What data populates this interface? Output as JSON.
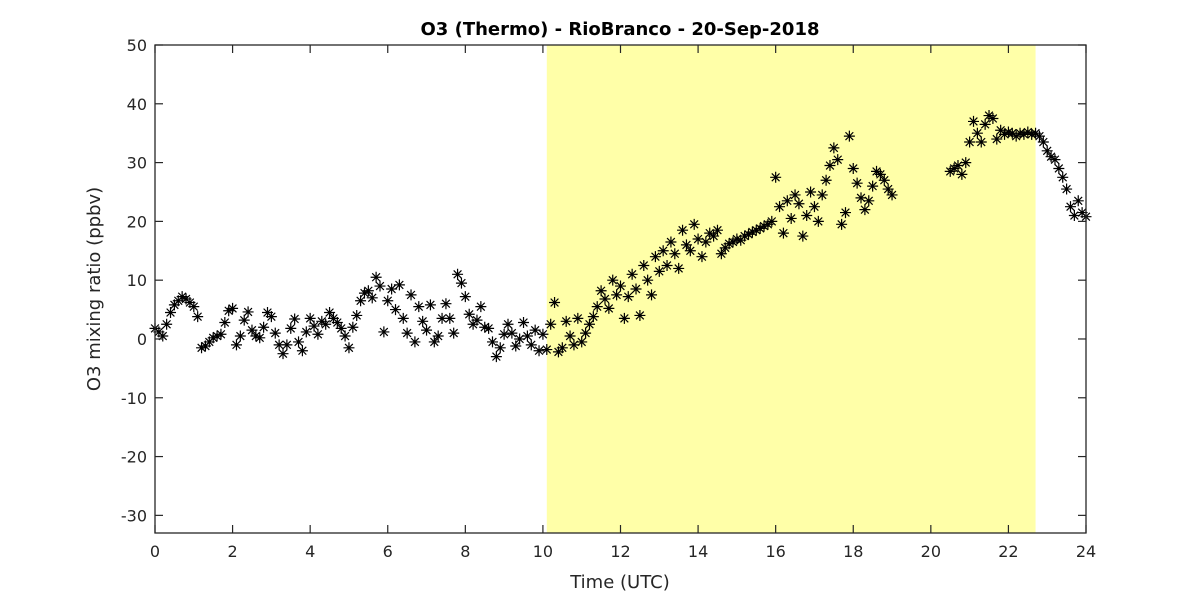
{
  "chart_data": {
    "type": "scatter",
    "title": "O3 (Thermo) - RioBranco - 20-Sep-2018",
    "xlabel": "Time (UTC)",
    "ylabel": "O3 mixing ratio (ppbv)",
    "xlim": [
      0,
      24
    ],
    "ylim": [
      -33,
      50
    ],
    "xticks": [
      "0",
      "2",
      "4",
      "6",
      "8",
      "10",
      "12",
      "14",
      "16",
      "18",
      "20",
      "22",
      "24"
    ],
    "yticks": [
      "-30",
      "-20",
      "-10",
      "0",
      "10",
      "20",
      "30",
      "40",
      "50"
    ],
    "grid": false,
    "marker": "asterisk",
    "marker_color": "#000000",
    "highlight": {
      "x_start": 10.1,
      "x_end": 22.7,
      "color": "#ffffa8"
    },
    "series": [
      {
        "points": [
          [
            0.0,
            1.8
          ],
          [
            0.1,
            1.2
          ],
          [
            0.2,
            0.5
          ],
          [
            0.3,
            2.5
          ],
          [
            0.4,
            4.5
          ],
          [
            0.5,
            5.8
          ],
          [
            0.6,
            6.5
          ],
          [
            0.7,
            7.2
          ],
          [
            0.8,
            6.8
          ],
          [
            0.9,
            6.2
          ],
          [
            1.0,
            5.5
          ],
          [
            1.1,
            3.8
          ],
          [
            1.2,
            -1.5
          ],
          [
            1.3,
            -1.2
          ],
          [
            1.4,
            -0.5
          ],
          [
            1.5,
            0.2
          ],
          [
            1.6,
            0.5
          ],
          [
            1.7,
            0.8
          ],
          [
            1.8,
            2.8
          ],
          [
            1.9,
            4.8
          ],
          [
            2.0,
            5.2
          ],
          [
            2.1,
            -1.0
          ],
          [
            2.2,
            0.5
          ],
          [
            2.3,
            3.2
          ],
          [
            2.4,
            4.6
          ],
          [
            2.5,
            1.5
          ],
          [
            2.6,
            0.5
          ],
          [
            2.7,
            0.2
          ],
          [
            2.8,
            2.0
          ],
          [
            2.9,
            4.5
          ],
          [
            3.0,
            3.8
          ],
          [
            3.1,
            1.0
          ],
          [
            3.2,
            -1.0
          ],
          [
            3.3,
            -2.5
          ],
          [
            3.4,
            -1.0
          ],
          [
            3.5,
            1.8
          ],
          [
            3.6,
            3.4
          ],
          [
            3.7,
            -0.5
          ],
          [
            3.8,
            -2.0
          ],
          [
            3.9,
            1.2
          ],
          [
            4.0,
            3.5
          ],
          [
            4.1,
            2.2
          ],
          [
            4.2,
            0.8
          ],
          [
            4.3,
            3.0
          ],
          [
            4.4,
            2.5
          ],
          [
            4.5,
            4.5
          ],
          [
            4.6,
            3.5
          ],
          [
            4.7,
            2.8
          ],
          [
            4.8,
            1.8
          ],
          [
            4.9,
            0.5
          ],
          [
            5.0,
            -1.5
          ],
          [
            5.1,
            2.0
          ],
          [
            5.2,
            4.0
          ],
          [
            5.3,
            6.5
          ],
          [
            5.4,
            7.8
          ],
          [
            5.5,
            8.2
          ],
          [
            5.6,
            7.0
          ],
          [
            5.7,
            10.5
          ],
          [
            5.8,
            9.0
          ],
          [
            5.9,
            1.2
          ],
          [
            6.0,
            6.5
          ],
          [
            6.1,
            8.5
          ],
          [
            6.2,
            5.0
          ],
          [
            6.3,
            9.2
          ],
          [
            6.4,
            3.5
          ],
          [
            6.5,
            1.0
          ],
          [
            6.6,
            7.5
          ],
          [
            6.7,
            -0.5
          ],
          [
            6.8,
            5.5
          ],
          [
            6.9,
            3.0
          ],
          [
            7.0,
            1.5
          ],
          [
            7.1,
            5.8
          ],
          [
            7.2,
            -0.5
          ],
          [
            7.3,
            0.5
          ],
          [
            7.4,
            3.5
          ],
          [
            7.5,
            6.0
          ],
          [
            7.6,
            3.5
          ],
          [
            7.7,
            1.0
          ],
          [
            7.8,
            11.0
          ],
          [
            7.9,
            9.5
          ],
          [
            8.0,
            7.2
          ],
          [
            8.1,
            4.2
          ],
          [
            8.2,
            2.5
          ],
          [
            8.3,
            3.2
          ],
          [
            8.4,
            5.5
          ],
          [
            8.5,
            2.0
          ],
          [
            8.6,
            1.8
          ],
          [
            8.7,
            -0.5
          ],
          [
            8.8,
            -3.0
          ],
          [
            8.9,
            -1.5
          ],
          [
            9.0,
            0.8
          ],
          [
            9.1,
            2.5
          ],
          [
            9.2,
            1.0
          ],
          [
            9.3,
            -1.2
          ],
          [
            9.4,
            0.0
          ],
          [
            9.5,
            2.8
          ],
          [
            9.6,
            0.5
          ],
          [
            9.7,
            -1.0
          ],
          [
            9.8,
            1.5
          ],
          [
            9.9,
            -2.0
          ],
          [
            10.0,
            0.8
          ],
          [
            10.1,
            -1.8
          ],
          [
            10.2,
            2.5
          ],
          [
            10.3,
            6.2
          ],
          [
            10.4,
            -2.2
          ],
          [
            10.5,
            -1.5
          ],
          [
            10.6,
            3.0
          ],
          [
            10.7,
            0.5
          ],
          [
            10.8,
            -1.0
          ],
          [
            10.9,
            3.5
          ],
          [
            11.0,
            -0.5
          ],
          [
            11.1,
            1.0
          ],
          [
            11.2,
            2.5
          ],
          [
            11.3,
            3.8
          ],
          [
            11.4,
            5.5
          ],
          [
            11.5,
            8.2
          ],
          [
            11.6,
            6.8
          ],
          [
            11.7,
            5.2
          ],
          [
            11.8,
            10.0
          ],
          [
            11.9,
            7.5
          ],
          [
            12.0,
            9.0
          ],
          [
            12.1,
            3.5
          ],
          [
            12.2,
            7.2
          ],
          [
            12.3,
            11.0
          ],
          [
            12.4,
            8.5
          ],
          [
            12.5,
            4.0
          ],
          [
            12.6,
            12.5
          ],
          [
            12.7,
            10.0
          ],
          [
            12.8,
            7.5
          ],
          [
            12.9,
            14.0
          ],
          [
            13.0,
            11.5
          ],
          [
            13.1,
            15.0
          ],
          [
            13.2,
            12.5
          ],
          [
            13.3,
            16.5
          ],
          [
            13.4,
            14.5
          ],
          [
            13.5,
            12.0
          ],
          [
            13.6,
            18.5
          ],
          [
            13.7,
            16.0
          ],
          [
            13.8,
            15.0
          ],
          [
            13.9,
            19.5
          ],
          [
            14.0,
            17.0
          ],
          [
            14.1,
            14.0
          ],
          [
            14.2,
            16.5
          ],
          [
            14.3,
            18.0
          ],
          [
            14.4,
            17.5
          ],
          [
            14.5,
            18.5
          ],
          [
            14.6,
            14.5
          ],
          [
            14.7,
            15.5
          ],
          [
            14.8,
            16.2
          ],
          [
            14.9,
            16.5
          ],
          [
            15.0,
            17.0
          ],
          [
            15.1,
            16.8
          ],
          [
            15.2,
            17.5
          ],
          [
            15.3,
            17.8
          ],
          [
            15.4,
            18.2
          ],
          [
            15.5,
            18.5
          ],
          [
            15.6,
            18.8
          ],
          [
            15.7,
            19.2
          ],
          [
            15.8,
            19.5
          ],
          [
            15.9,
            20.0
          ],
          [
            16.0,
            27.5
          ],
          [
            16.1,
            22.5
          ],
          [
            16.2,
            18.0
          ],
          [
            16.3,
            23.5
          ],
          [
            16.4,
            20.5
          ],
          [
            16.5,
            24.5
          ],
          [
            16.6,
            23.0
          ],
          [
            16.7,
            17.5
          ],
          [
            16.8,
            21.0
          ],
          [
            16.9,
            25.0
          ],
          [
            17.0,
            22.5
          ],
          [
            17.1,
            20.0
          ],
          [
            17.2,
            24.5
          ],
          [
            17.3,
            27.0
          ],
          [
            17.4,
            29.5
          ],
          [
            17.5,
            32.5
          ],
          [
            17.6,
            30.5
          ],
          [
            17.7,
            19.5
          ],
          [
            17.8,
            21.5
          ],
          [
            17.9,
            34.5
          ],
          [
            18.0,
            29.0
          ],
          [
            18.1,
            26.5
          ],
          [
            18.2,
            24.0
          ],
          [
            18.3,
            22.0
          ],
          [
            18.4,
            23.5
          ],
          [
            18.5,
            26.0
          ],
          [
            18.6,
            28.5
          ],
          [
            18.7,
            28.0
          ],
          [
            18.8,
            27.0
          ],
          [
            18.9,
            25.5
          ],
          [
            19.0,
            24.5
          ],
          [
            20.5,
            28.5
          ],
          [
            20.6,
            29.0
          ],
          [
            20.7,
            29.5
          ],
          [
            20.8,
            28.0
          ],
          [
            20.9,
            30.0
          ],
          [
            21.0,
            33.5
          ],
          [
            21.1,
            37.0
          ],
          [
            21.2,
            35.0
          ],
          [
            21.3,
            33.5
          ],
          [
            21.4,
            36.5
          ],
          [
            21.5,
            38.0
          ],
          [
            21.6,
            37.5
          ],
          [
            21.7,
            34.0
          ],
          [
            21.8,
            35.5
          ],
          [
            21.9,
            34.8
          ],
          [
            22.0,
            35.2
          ],
          [
            22.1,
            35.0
          ],
          [
            22.2,
            34.5
          ],
          [
            22.3,
            35.0
          ],
          [
            22.4,
            34.8
          ],
          [
            22.5,
            35.2
          ],
          [
            22.6,
            34.8
          ],
          [
            22.7,
            35.0
          ],
          [
            22.8,
            34.5
          ],
          [
            22.9,
            33.5
          ],
          [
            23.0,
            32.0
          ],
          [
            23.1,
            31.0
          ],
          [
            23.2,
            30.5
          ],
          [
            23.3,
            29.0
          ],
          [
            23.4,
            27.5
          ],
          [
            23.5,
            25.5
          ],
          [
            23.6,
            22.5
          ],
          [
            23.7,
            21.0
          ],
          [
            23.8,
            23.5
          ],
          [
            23.9,
            21.5
          ],
          [
            24.0,
            20.8
          ]
        ]
      }
    ]
  }
}
